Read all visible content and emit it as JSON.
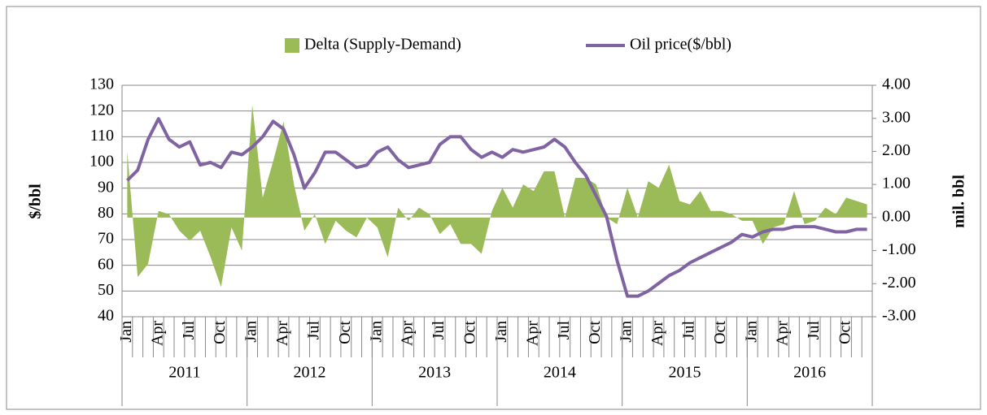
{
  "chart_data": {
    "type": "area-line",
    "y_label": "$/bbl",
    "y2_label": "mil. bbl",
    "categories": [
      "Jan",
      null,
      null,
      "Apr",
      null,
      null,
      "Jul",
      null,
      null,
      "Oct",
      null,
      null,
      "Jan",
      null,
      null,
      "Apr",
      null,
      null,
      "Jul",
      null,
      null,
      "Oct",
      null,
      null,
      "Jan",
      null,
      null,
      "Apr",
      null,
      null,
      "Jul",
      null,
      null,
      "Oct",
      null,
      null,
      "Jan",
      null,
      null,
      "Apr",
      null,
      null,
      "Jul",
      null,
      null,
      "Oct",
      null,
      null,
      "Jan",
      null,
      null,
      "Apr",
      null,
      null,
      "Jul",
      null,
      null,
      "Oct",
      null,
      null,
      "Jan",
      null,
      null,
      "Apr",
      null,
      null,
      "Jul",
      null,
      null,
      "Oct",
      null,
      null
    ],
    "year_groups": [
      "2011",
      "2012",
      "2013",
      "2014",
      "2015",
      "2016"
    ],
    "series": [
      {
        "name": "Delta (Supply-Demand)",
        "kind": "area",
        "axis": "y2",
        "color": "#9bbb59",
        "values": [
          2.0,
          -1.8,
          -1.4,
          0.2,
          0.1,
          -0.4,
          -0.7,
          -0.4,
          -1.2,
          -2.1,
          -0.3,
          -1.0,
          3.4,
          0.6,
          1.7,
          2.9,
          1.0,
          -0.4,
          0.1,
          -0.8,
          -0.1,
          -0.4,
          -0.6,
          0.0,
          -0.3,
          -1.2,
          0.3,
          -0.1,
          0.3,
          0.1,
          -0.5,
          -0.2,
          -0.8,
          -0.8,
          -1.1,
          0.2,
          0.9,
          0.3,
          1.0,
          0.8,
          1.4,
          1.4,
          0.0,
          1.2,
          1.2,
          1.0,
          0.0,
          -0.2,
          0.9,
          0.0,
          1.1,
          0.9,
          1.6,
          0.5,
          0.4,
          0.8,
          0.2,
          0.2,
          0.1,
          -0.1,
          -0.1,
          -0.8,
          -0.3,
          -0.2,
          0.8,
          -0.2,
          -0.1,
          0.3,
          0.1,
          0.6,
          0.5,
          0.4
        ]
      },
      {
        "name": "Oil price($/bbl)",
        "kind": "line",
        "axis": "y",
        "color": "#8064a2",
        "values": [
          93,
          97,
          109,
          117,
          109,
          106,
          108,
          99,
          100,
          98,
          104,
          103,
          106,
          110,
          116,
          113,
          103,
          90,
          96,
          104,
          104,
          101,
          98,
          99,
          104,
          106,
          101,
          98,
          99,
          100,
          107,
          110,
          110,
          105,
          102,
          104,
          102,
          105,
          104,
          105,
          106,
          109,
          106,
          100,
          95,
          87,
          79,
          62,
          48,
          48,
          50,
          53,
          56,
          58,
          61,
          63,
          65,
          67,
          69,
          72,
          71,
          73,
          74,
          74,
          75,
          75,
          75,
          74,
          73,
          73,
          74,
          74
        ]
      }
    ],
    "ylim": [
      40,
      130
    ],
    "yticks": [
      40,
      50,
      60,
      70,
      80,
      90,
      100,
      110,
      120,
      130
    ],
    "y2lim": [
      -3,
      4
    ],
    "y2ticks": [
      {
        "value": -3,
        "label": "-3.00"
      },
      {
        "value": -2,
        "label": "-2.00"
      },
      {
        "value": -1,
        "label": "-1.00"
      },
      {
        "value": 0,
        "label": "0.00"
      },
      {
        "value": 1,
        "label": "1.00"
      },
      {
        "value": 2,
        "label": "2.00"
      },
      {
        "value": 3,
        "label": "3.00"
      },
      {
        "value": 4,
        "label": "4.00"
      }
    ],
    "grid": true,
    "legend": "top"
  }
}
